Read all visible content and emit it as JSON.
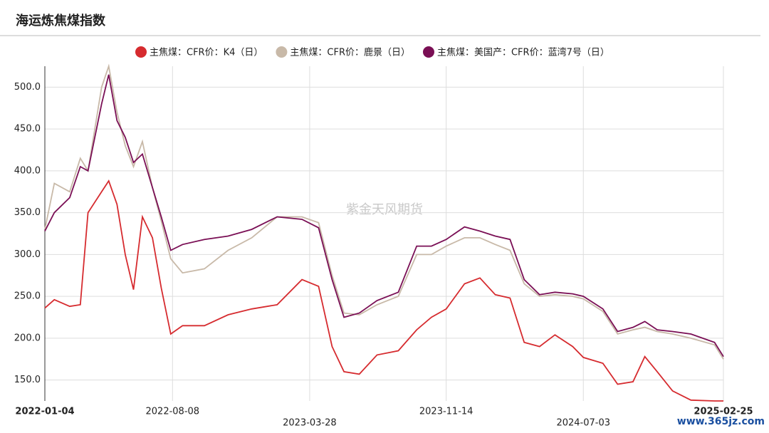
{
  "chart_data": {
    "type": "line",
    "title": "海运炼焦煤指数",
    "watermark": "紫金天风期货",
    "site_mark": "www.365jz.com",
    "x": [
      "2022-01-04",
      "2022-01-20",
      "2022-02-15",
      "2022-03-05",
      "2022-03-18",
      "2022-04-10",
      "2022-04-22",
      "2022-05-06",
      "2022-05-20",
      "2022-06-03",
      "2022-06-18",
      "2022-07-05",
      "2022-07-20",
      "2022-08-05",
      "2022-08-25",
      "2022-10-01",
      "2022-11-10",
      "2022-12-20",
      "2023-02-01",
      "2023-03-15",
      "2023-04-12",
      "2023-05-05",
      "2023-05-25",
      "2023-06-20",
      "2023-07-20",
      "2023-08-25",
      "2023-09-25",
      "2023-10-20",
      "2023-11-14",
      "2023-12-15",
      "2024-01-10",
      "2024-02-05",
      "2024-03-01",
      "2024-03-25",
      "2024-04-20",
      "2024-05-16",
      "2024-06-15",
      "2024-07-03",
      "2024-08-05",
      "2024-08-30",
      "2024-09-25",
      "2024-10-15",
      "2024-11-05",
      "2024-12-01",
      "2025-01-01",
      "2025-02-10",
      "2025-02-25"
    ],
    "series": [
      {
        "name": "主焦煤：CFR价：K4（日）",
        "color": "#d62b2f",
        "values": [
          236,
          246,
          238,
          240,
          350,
          375,
          388,
          360,
          300,
          258,
          345,
          320,
          260,
          205,
          215,
          215,
          228,
          235,
          240,
          270,
          262,
          190,
          160,
          157,
          180,
          185,
          210,
          225,
          235,
          265,
          272,
          252,
          248,
          195,
          190,
          204,
          190,
          177,
          170,
          145,
          148,
          178,
          160,
          137,
          126,
          125,
          125
        ]
      },
      {
        "name": "主焦煤：CFR价：鹿景（日）",
        "color": "#c8b9a8",
        "values": [
          330,
          385,
          375,
          415,
          400,
          500,
          525,
          470,
          430,
          405,
          435,
          380,
          340,
          295,
          278,
          283,
          305,
          320,
          345,
          345,
          338,
          275,
          230,
          228,
          240,
          250,
          300,
          300,
          310,
          320,
          320,
          312,
          305,
          265,
          250,
          252,
          250,
          247,
          232,
          205,
          210,
          213,
          208,
          205,
          200,
          192,
          175
        ]
      },
      {
        "name": "主焦煤：美国产：CFR价：蓝湾7号（日）",
        "color": "#7a0f55",
        "values": [
          328,
          350,
          368,
          405,
          400,
          480,
          515,
          460,
          440,
          410,
          420,
          380,
          345,
          305,
          312,
          318,
          322,
          330,
          345,
          342,
          332,
          270,
          225,
          230,
          245,
          255,
          310,
          310,
          318,
          333,
          328,
          322,
          318,
          270,
          252,
          255,
          253,
          250,
          235,
          208,
          213,
          220,
          210,
          208,
          205,
          195,
          178
        ]
      }
    ],
    "xlim": [
      "2022-01-04",
      "2025-02-25"
    ],
    "xticks": [
      "2022-01-04",
      "2022-08-08",
      "2023-03-28",
      "2023-11-14",
      "2024-07-03",
      "2025-02-25"
    ],
    "ylim": [
      125,
      525
    ],
    "yticks": [
      {
        "value": 150,
        "label": "150.0"
      },
      {
        "value": 200,
        "label": "200.0"
      },
      {
        "value": 250,
        "label": "250.0"
      },
      {
        "value": 300,
        "label": "300.0"
      },
      {
        "value": 350,
        "label": "350.0"
      },
      {
        "value": 400,
        "label": "400.0"
      },
      {
        "value": 450,
        "label": "450.0"
      },
      {
        "value": 500,
        "label": "500.0"
      }
    ],
    "grid": true
  }
}
